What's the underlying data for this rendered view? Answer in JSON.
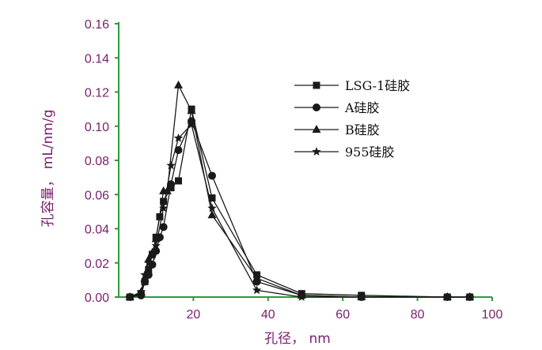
{
  "chart_data": {
    "type": "line",
    "xlabel": "孔径， nm",
    "ylabel": "孔容量， mL/nm/g",
    "xlim": [
      0,
      100
    ],
    "ylim": [
      0,
      0.16
    ],
    "x_ticks": [
      "20",
      "40",
      "60",
      "80",
      "100"
    ],
    "y_ticks": [
      "0.00",
      "0.02",
      "0.04",
      "0.06",
      "0.08",
      "0.10",
      "0.12",
      "0.14",
      "0.16"
    ],
    "legend_position": "right",
    "grid": false,
    "colors": {
      "axis": "#2e9a3e",
      "text": "#7a1f6e",
      "series": "#1a1a1a"
    },
    "series": [
      {
        "name": "LSG-1硅胶",
        "marker": "square",
        "points": [
          [
            3,
            0.0
          ],
          [
            6,
            0.002
          ],
          [
            7,
            0.009
          ],
          [
            8,
            0.016
          ],
          [
            9,
            0.025
          ],
          [
            10,
            0.035
          ],
          [
            11,
            0.047
          ],
          [
            12,
            0.056
          ],
          [
            14,
            0.064
          ],
          [
            16,
            0.068
          ],
          [
            19.5,
            0.11
          ],
          [
            25,
            0.058
          ],
          [
            37,
            0.013
          ],
          [
            49,
            0.002
          ],
          [
            65,
            0.001
          ],
          [
            88,
            0.0
          ],
          [
            94,
            0.0
          ]
        ]
      },
      {
        "name": "A硅胶",
        "marker": "circle",
        "points": [
          [
            3,
            0.0
          ],
          [
            6,
            0.001
          ],
          [
            7,
            0.009
          ],
          [
            8,
            0.013
          ],
          [
            9,
            0.019
          ],
          [
            10,
            0.027
          ],
          [
            11,
            0.035
          ],
          [
            12,
            0.041
          ],
          [
            14,
            0.066
          ],
          [
            16,
            0.086
          ],
          [
            19.5,
            0.103
          ],
          [
            25,
            0.071
          ],
          [
            37,
            0.009
          ],
          [
            49,
            0.001
          ],
          [
            65,
            0.0
          ],
          [
            88,
            0.0
          ],
          [
            94,
            0.0
          ]
        ]
      },
      {
        "name": "B硅胶",
        "marker": "triangle",
        "points": [
          [
            3,
            0.0
          ],
          [
            6,
            0.003
          ],
          [
            7,
            0.011
          ],
          [
            8,
            0.022
          ],
          [
            9,
            0.026
          ],
          [
            10,
            0.034
          ],
          [
            12,
            0.062
          ],
          [
            13,
            0.062
          ],
          [
            16,
            0.124
          ],
          [
            19.5,
            0.109
          ],
          [
            25,
            0.048
          ],
          [
            37,
            0.011
          ],
          [
            49,
            0.001
          ],
          [
            65,
            0.0
          ],
          [
            88,
            0.0
          ],
          [
            94,
            0.0
          ]
        ]
      },
      {
        "name": "955硅胶",
        "marker": "star",
        "points": [
          [
            3,
            0.0
          ],
          [
            6,
            0.003
          ],
          [
            7,
            0.013
          ],
          [
            8,
            0.02
          ],
          [
            9,
            0.024
          ],
          [
            10,
            0.03
          ],
          [
            12,
            0.052
          ],
          [
            14,
            0.077
          ],
          [
            16,
            0.093
          ],
          [
            19.5,
            0.101
          ],
          [
            25,
            0.052
          ],
          [
            37,
            0.004
          ],
          [
            49,
            0.0
          ],
          [
            65,
            0.0
          ],
          [
            88,
            0.0
          ],
          [
            94,
            0.0
          ]
        ]
      }
    ]
  }
}
